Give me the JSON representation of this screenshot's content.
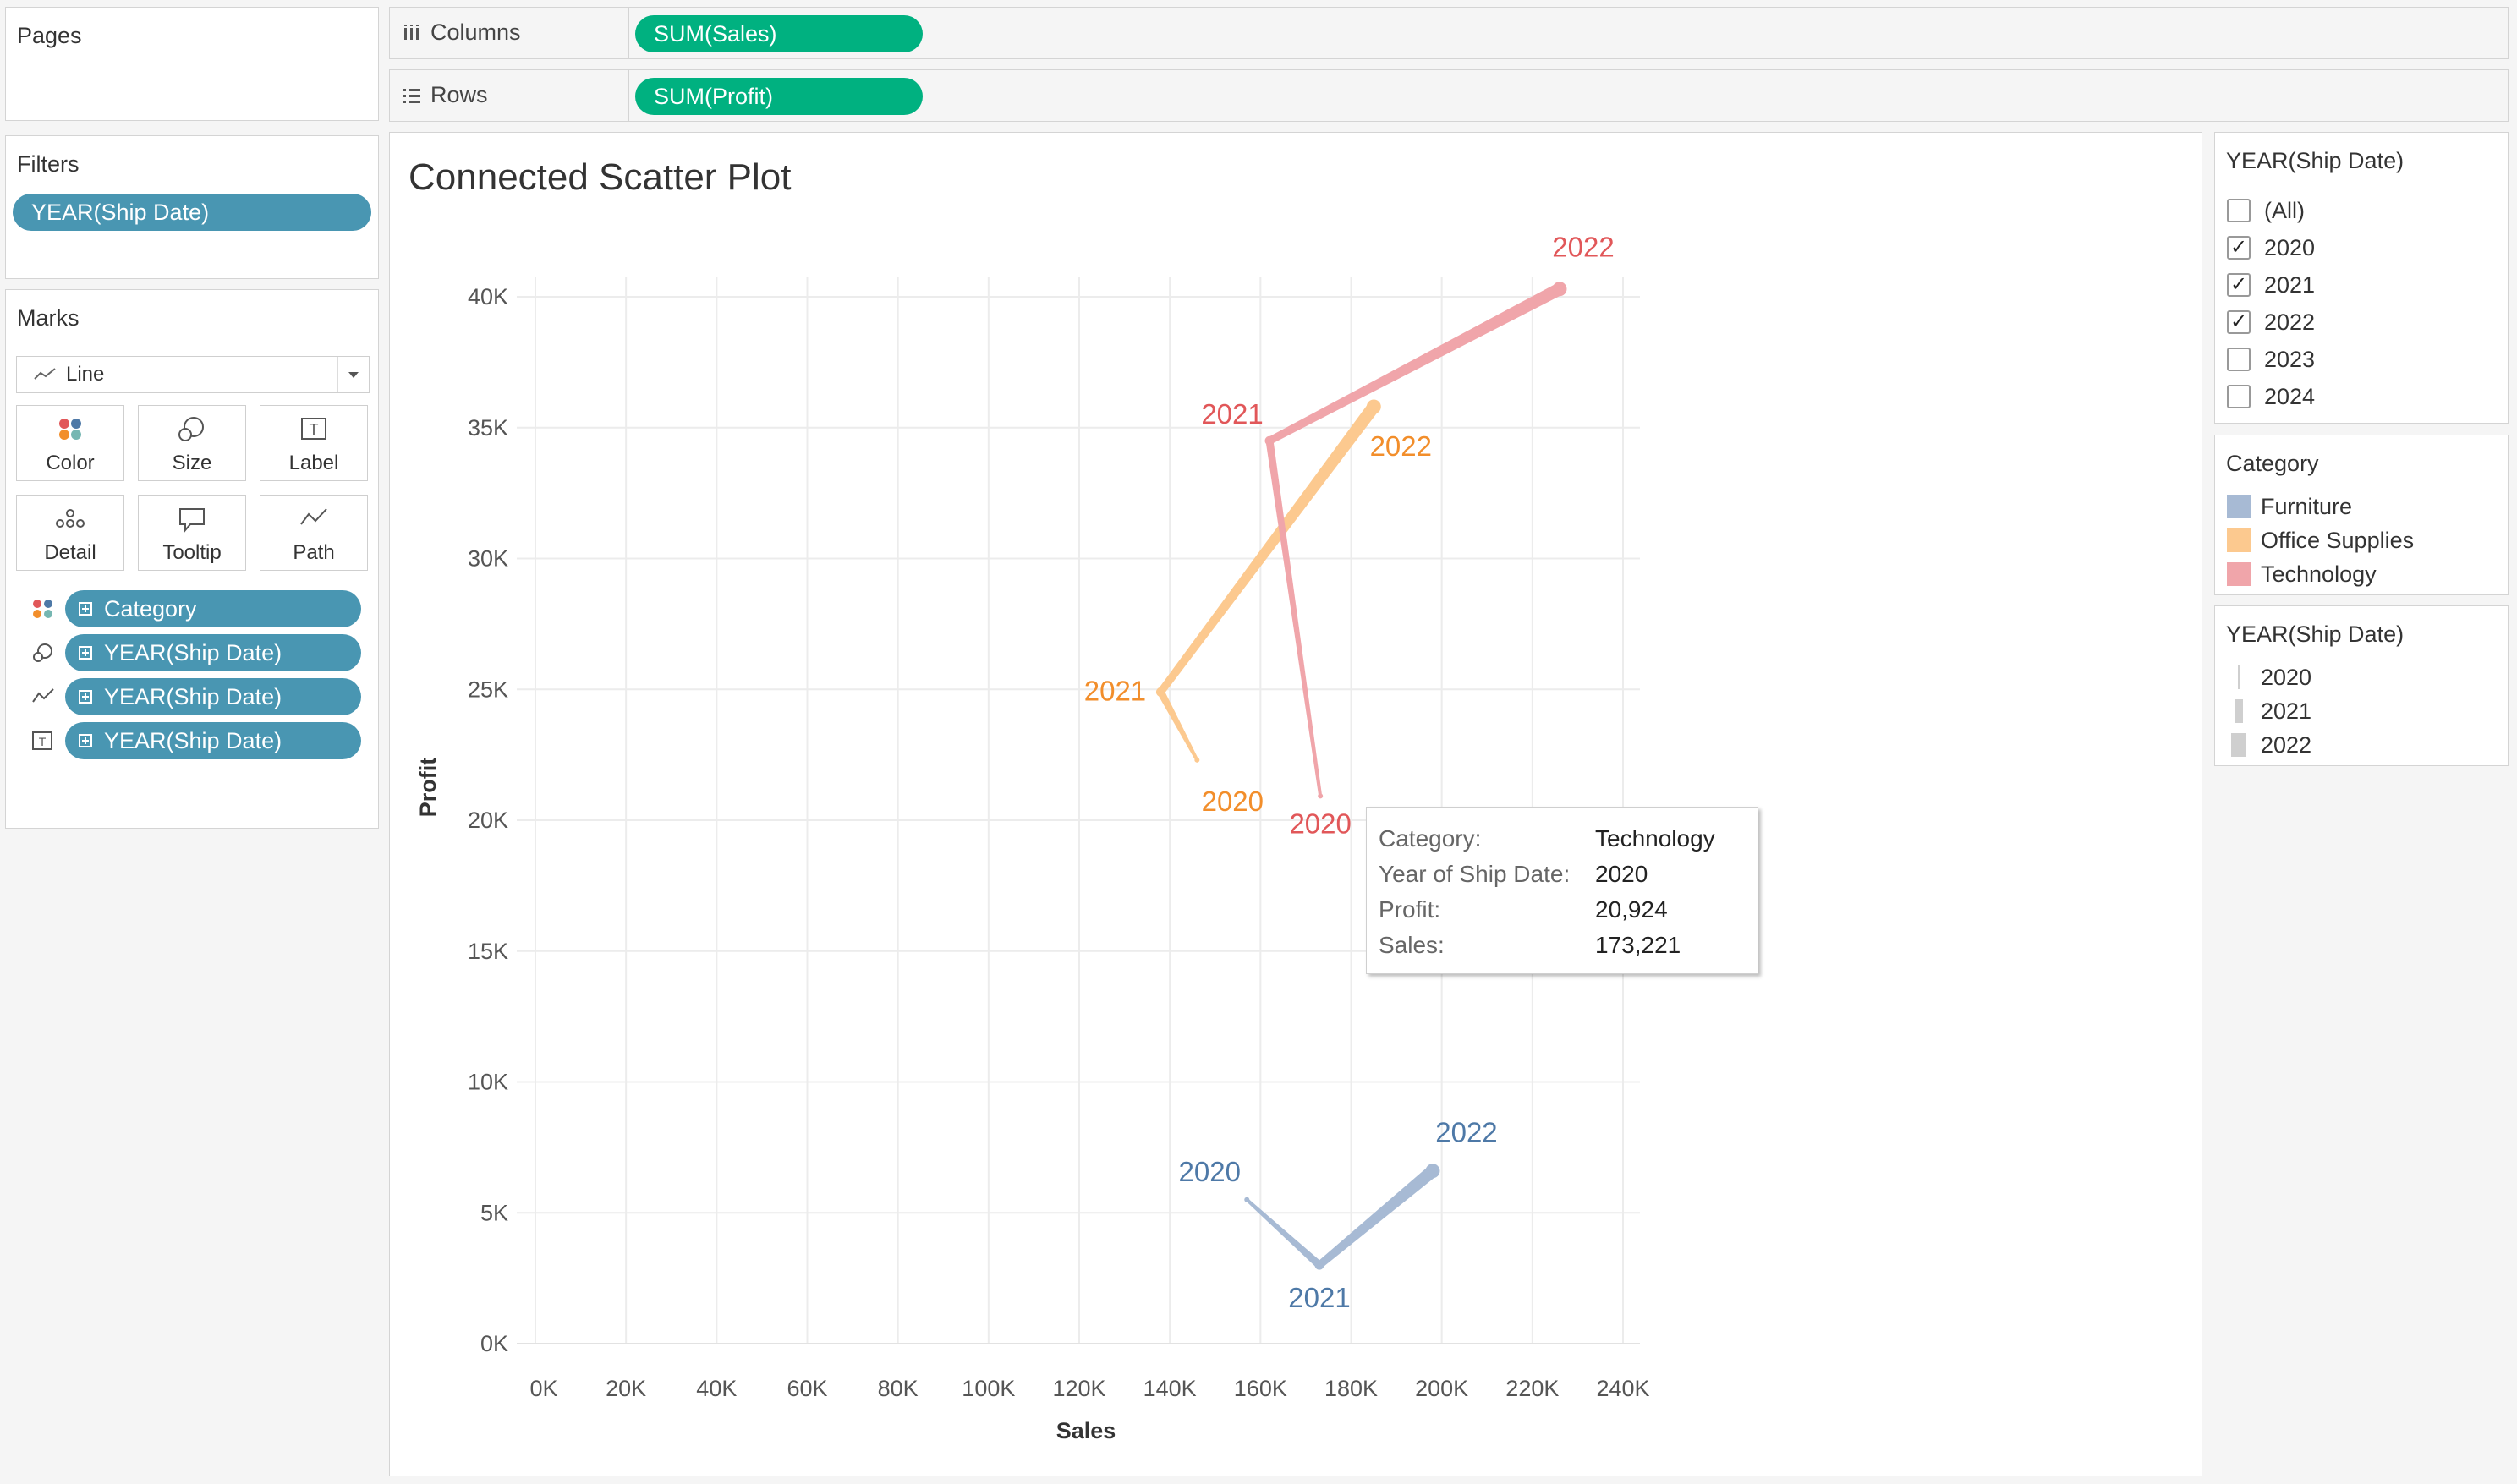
{
  "pages": {
    "title": "Pages"
  },
  "filters": {
    "title": "Filters",
    "pill": "YEAR(Ship Date)"
  },
  "marks": {
    "title": "Marks",
    "type": "Line",
    "buttons": [
      "Color",
      "Size",
      "Label",
      "Detail",
      "Tooltip",
      "Path"
    ],
    "pills": [
      "Category",
      "YEAR(Ship Date)",
      "YEAR(Ship Date)",
      "YEAR(Ship Date)"
    ]
  },
  "shelves": {
    "columns_label": "Columns",
    "columns_pill": "SUM(Sales)",
    "rows_label": "Rows",
    "rows_pill": "SUM(Profit)"
  },
  "year_filter": {
    "title": "YEAR(Ship Date)",
    "items": [
      {
        "label": "(All)",
        "checked": false
      },
      {
        "label": "2020",
        "checked": true
      },
      {
        "label": "2021",
        "checked": true
      },
      {
        "label": "2022",
        "checked": true
      },
      {
        "label": "2023",
        "checked": false
      },
      {
        "label": "2024",
        "checked": false
      }
    ]
  },
  "category_legend": {
    "title": "Category",
    "items": [
      {
        "label": "Furniture",
        "color": "#a7bad4"
      },
      {
        "label": "Office Supplies",
        "color": "#fcc98f"
      },
      {
        "label": "Technology",
        "color": "#f0a5aa"
      }
    ]
  },
  "size_legend": {
    "title": "YEAR(Ship Date)",
    "items": [
      "2020",
      "2021",
      "2022"
    ]
  },
  "tooltip": {
    "rows": [
      {
        "key": "Category:",
        "value": "Technology"
      },
      {
        "key": "Year of Ship Date:",
        "value": "2020"
      },
      {
        "key": "Profit:",
        "value": "20,924"
      },
      {
        "key": "Sales:",
        "value": "173,221"
      }
    ]
  },
  "chart_data": {
    "type": "line",
    "title": "Connected Scatter Plot",
    "xlabel": "Sales",
    "ylabel": "Profit",
    "xlim": [
      0,
      240000
    ],
    "ylim": [
      0,
      42000
    ],
    "x_ticks": [
      "0K",
      "20K",
      "40K",
      "60K",
      "80K",
      "100K",
      "120K",
      "140K",
      "160K",
      "180K",
      "200K",
      "220K",
      "240K"
    ],
    "y_ticks": [
      "0K",
      "5K",
      "10K",
      "15K",
      "20K",
      "25K",
      "30K",
      "35K",
      "40K"
    ],
    "grid": true,
    "series": [
      {
        "name": "Furniture",
        "color": "#a7bad4",
        "label_color": "#4e79a7",
        "points": [
          {
            "year": "2020",
            "x": 157000,
            "y": 5500
          },
          {
            "year": "2021",
            "x": 173000,
            "y": 3000
          },
          {
            "year": "2022",
            "x": 198000,
            "y": 6600
          }
        ]
      },
      {
        "name": "Office Supplies",
        "color": "#fcc98f",
        "label_color": "#f28e2b",
        "points": [
          {
            "year": "2020",
            "x": 146000,
            "y": 22300
          },
          {
            "year": "2021",
            "x": 138000,
            "y": 24900
          },
          {
            "year": "2022",
            "x": 185000,
            "y": 35800
          }
        ]
      },
      {
        "name": "Technology",
        "color": "#f0a5aa",
        "label_color": "#e15759",
        "points": [
          {
            "year": "2020",
            "x": 173221,
            "y": 20924
          },
          {
            "year": "2021",
            "x": 162000,
            "y": 34500
          },
          {
            "year": "2022",
            "x": 226000,
            "y": 40300
          }
        ]
      }
    ],
    "widths": {
      "2020": 4,
      "2021": 9,
      "2022": 15
    }
  }
}
